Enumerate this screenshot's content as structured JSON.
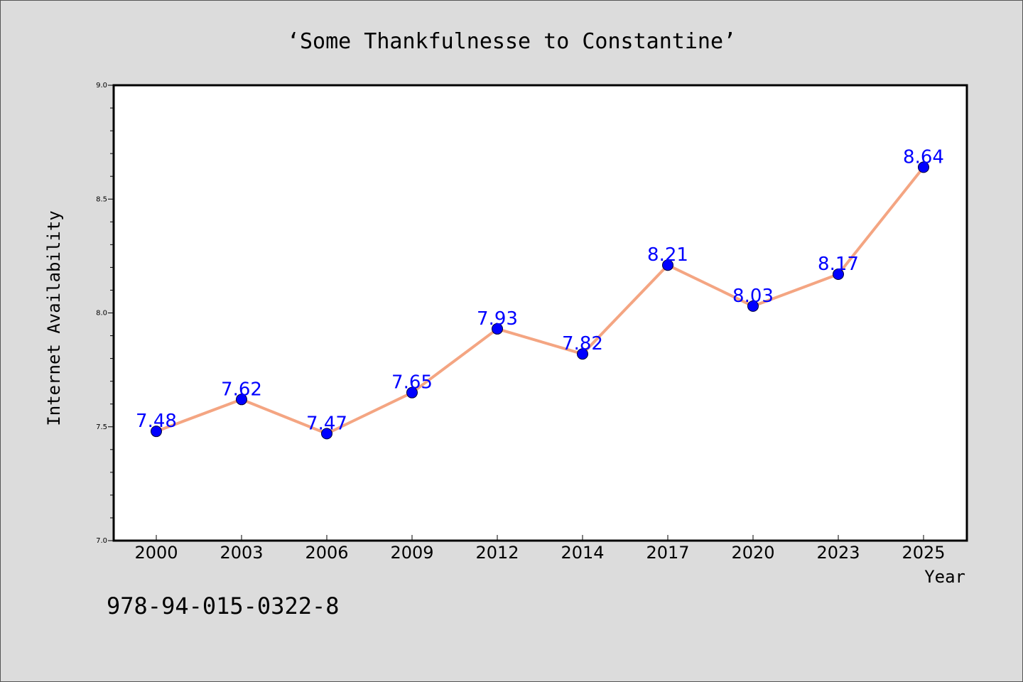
{
  "chart_data": {
    "type": "line",
    "title": "‘Some Thankfulnesse to Constantine’",
    "xlabel": "Year",
    "ylabel": "Internet Availability",
    "categories": [
      "2000",
      "2003",
      "2006",
      "2009",
      "2012",
      "2014",
      "2017",
      "2020",
      "2023",
      "2025"
    ],
    "series": [
      {
        "values": [
          7.48,
          7.62,
          7.47,
          7.65,
          7.93,
          7.82,
          8.21,
          8.03,
          8.17,
          8.64
        ],
        "data_labels": [
          "7.48",
          "7.62",
          "7.47",
          "7.65",
          "7.93",
          "7.82",
          "8.21",
          "8.03",
          "8.17",
          "8.64"
        ],
        "line_color": "#f4a582",
        "marker_color": "#0000ff",
        "label_color": "#0000ff"
      }
    ],
    "ylim": [
      7.0,
      9.0
    ],
    "yticks": [
      "7.0",
      "7.5",
      "8.0",
      "8.5",
      "9.0"
    ],
    "grid": false,
    "legend": "none"
  },
  "annotation": {
    "isbn": "978-94-015-0322-8"
  },
  "colors": {
    "background": "#dcdcdc",
    "plot_area": "#ffffff"
  }
}
